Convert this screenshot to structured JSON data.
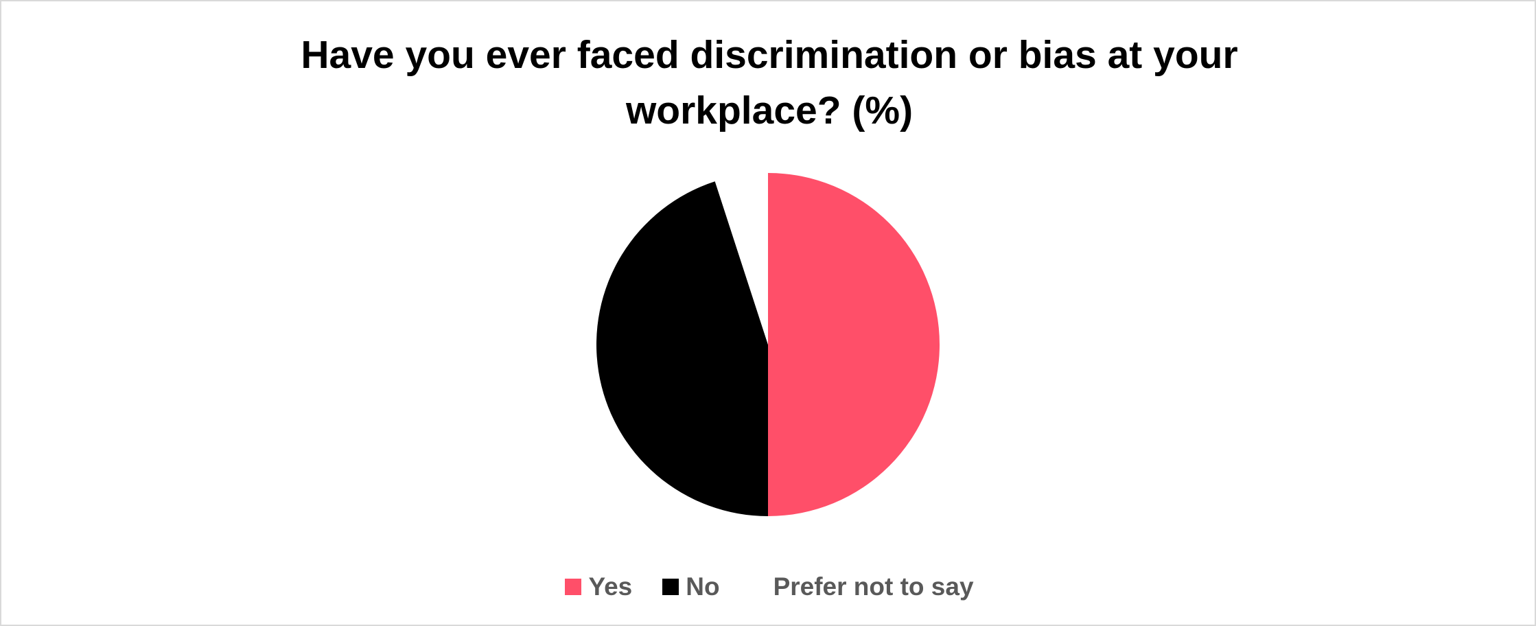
{
  "chart_data": {
    "type": "pie",
    "title": "Have you ever faced discrimination or bias at your workplace? (%)",
    "categories": [
      "Yes",
      "No",
      "Prefer not to say"
    ],
    "values": [
      50,
      45,
      5
    ],
    "colors": [
      "#FF4F69",
      "#000000",
      "#FFFFFF"
    ]
  }
}
